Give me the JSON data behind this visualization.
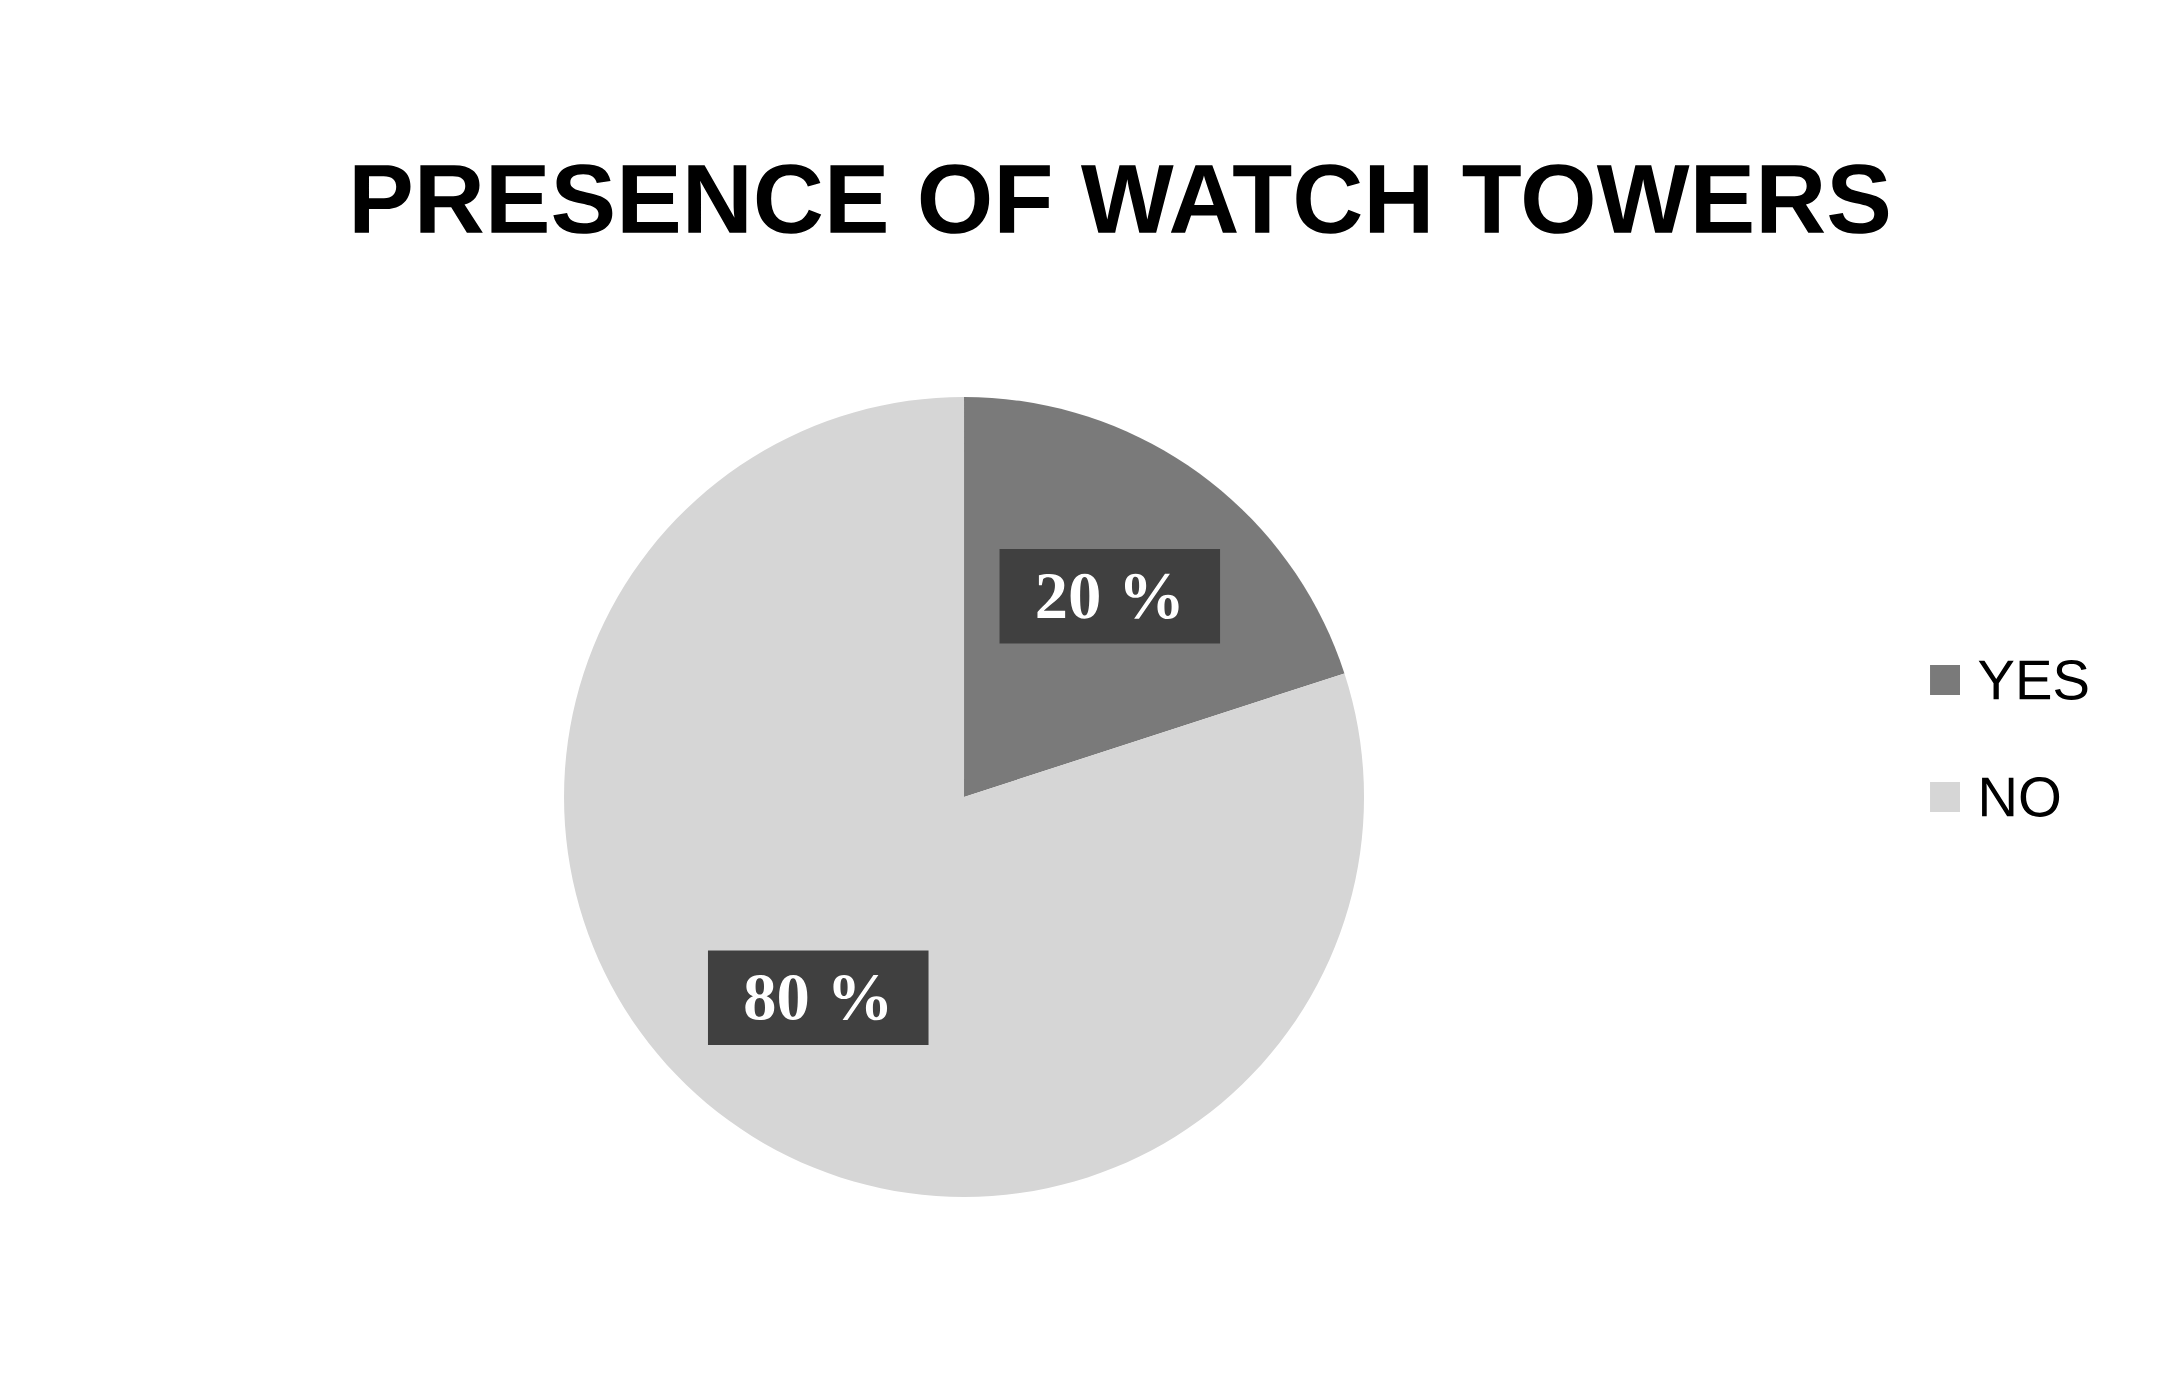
{
  "chart_data": {
    "type": "pie",
    "title": "PRESENCE OF WATCH TOWERS",
    "categories": [
      "YES",
      "NO"
    ],
    "values": [
      20,
      80
    ],
    "colors": [
      "#7a7a7a",
      "#d6d6d6"
    ],
    "value_labels": [
      "20 %",
      "80 %"
    ],
    "legend": "right"
  }
}
